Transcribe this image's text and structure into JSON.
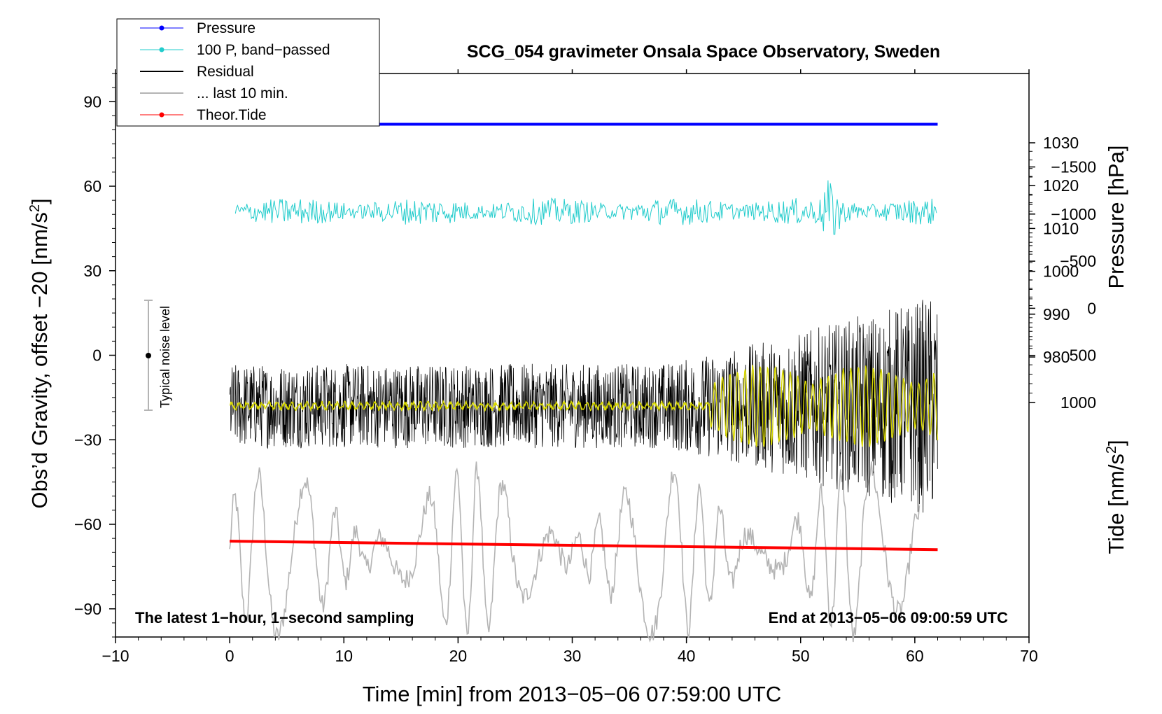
{
  "chart_data": {
    "type": "line",
    "title": "SCG_054 gravimeter Onsala Space Observatory, Sweden",
    "xlabel": "Time [min] from 2013−05−06 07:59:00 UTC",
    "ylabel_left": "Obs’d Gravity, offset −20 [nm/s",
    "ylabel_left_sup": "2",
    "ylabel_left_end": "]",
    "ylabel_right_pressure": "Pressure [hPa]",
    "ylabel_right_tide": "Tide [nm/s",
    "ylabel_right_tide_sup": "2",
    "ylabel_right_tide_end": "]",
    "xlim": [
      -10,
      70
    ],
    "ylim_left": [
      -100,
      100
    ],
    "xticks": [
      -10,
      0,
      10,
      20,
      30,
      40,
      50,
      60,
      70
    ],
    "xtick_labels": [
      "−10",
      "0",
      "10",
      "20",
      "30",
      "40",
      "50",
      "60",
      "70"
    ],
    "yticks_left": [
      -90,
      -60,
      -30,
      0,
      30,
      60,
      90
    ],
    "ytick_left_labels": [
      "−90",
      "−60",
      "−30",
      "0",
      "30",
      "60",
      "90"
    ],
    "pressure_ticks": [
      980,
      990,
      1000,
      1010,
      1020,
      1030
    ],
    "pressure_tick_labels": [
      "980",
      "990",
      "1000",
      "1010",
      "1020",
      "1030"
    ],
    "tide_ticks": [
      -1500,
      -1000,
      -500,
      0,
      500,
      1000
    ],
    "tide_tick_labels": [
      "−1500",
      "−1000",
      "−500",
      "0",
      "500",
      "1000"
    ],
    "legend": {
      "position": "top-left",
      "entries": [
        {
          "label": "Pressure",
          "color": "#0000ff",
          "marker": true
        },
        {
          "label": "100 P, band−passed",
          "color": "#22cccc",
          "marker": true
        },
        {
          "label": "Residual",
          "color": "#000000",
          "marker": false
        },
        {
          "label": "... last 10 min.",
          "color": "#b4b4b4",
          "marker": false
        },
        {
          "label": "Theor.Tide",
          "color": "#ff0000",
          "marker": true
        }
      ]
    },
    "annotations": {
      "left": "The latest 1−hour, 1−second sampling",
      "right": "End at 2013−05−06 09:00:59 UTC",
      "noise": "Typical noise level"
    },
    "series": [
      {
        "name": "Pressure",
        "color": "#0000ff",
        "x": [
          0,
          62
        ],
        "values": [
          82,
          82
        ],
        "approx_hPa": 1023
      },
      {
        "name": "100 P, band−passed",
        "color": "#22cccc",
        "x_range": [
          0.5,
          62
        ],
        "center": 51,
        "amplitude": 4
      },
      {
        "name": "Residual",
        "color": "#000000",
        "x_range": [
          0,
          62
        ],
        "center": -18,
        "amplitude_start": 15,
        "amplitude_end": 40
      },
      {
        "name": "... last 10 min.",
        "color": "#b4b4b4",
        "x_range": [
          0,
          60.5
        ],
        "center": -70,
        "amplitude": 25
      },
      {
        "name": "Smoothed residual",
        "color": "#d8d800",
        "x_range": [
          0,
          62
        ],
        "center": -18,
        "amplitude_start": 1,
        "amplitude_end": 14
      },
      {
        "name": "Theor.Tide",
        "color": "#ff0000",
        "x": [
          0,
          62
        ],
        "values": [
          -66,
          -69
        ]
      }
    ],
    "noise_level": {
      "x": -7,
      "center": 0,
      "halfrange": 20
    }
  }
}
